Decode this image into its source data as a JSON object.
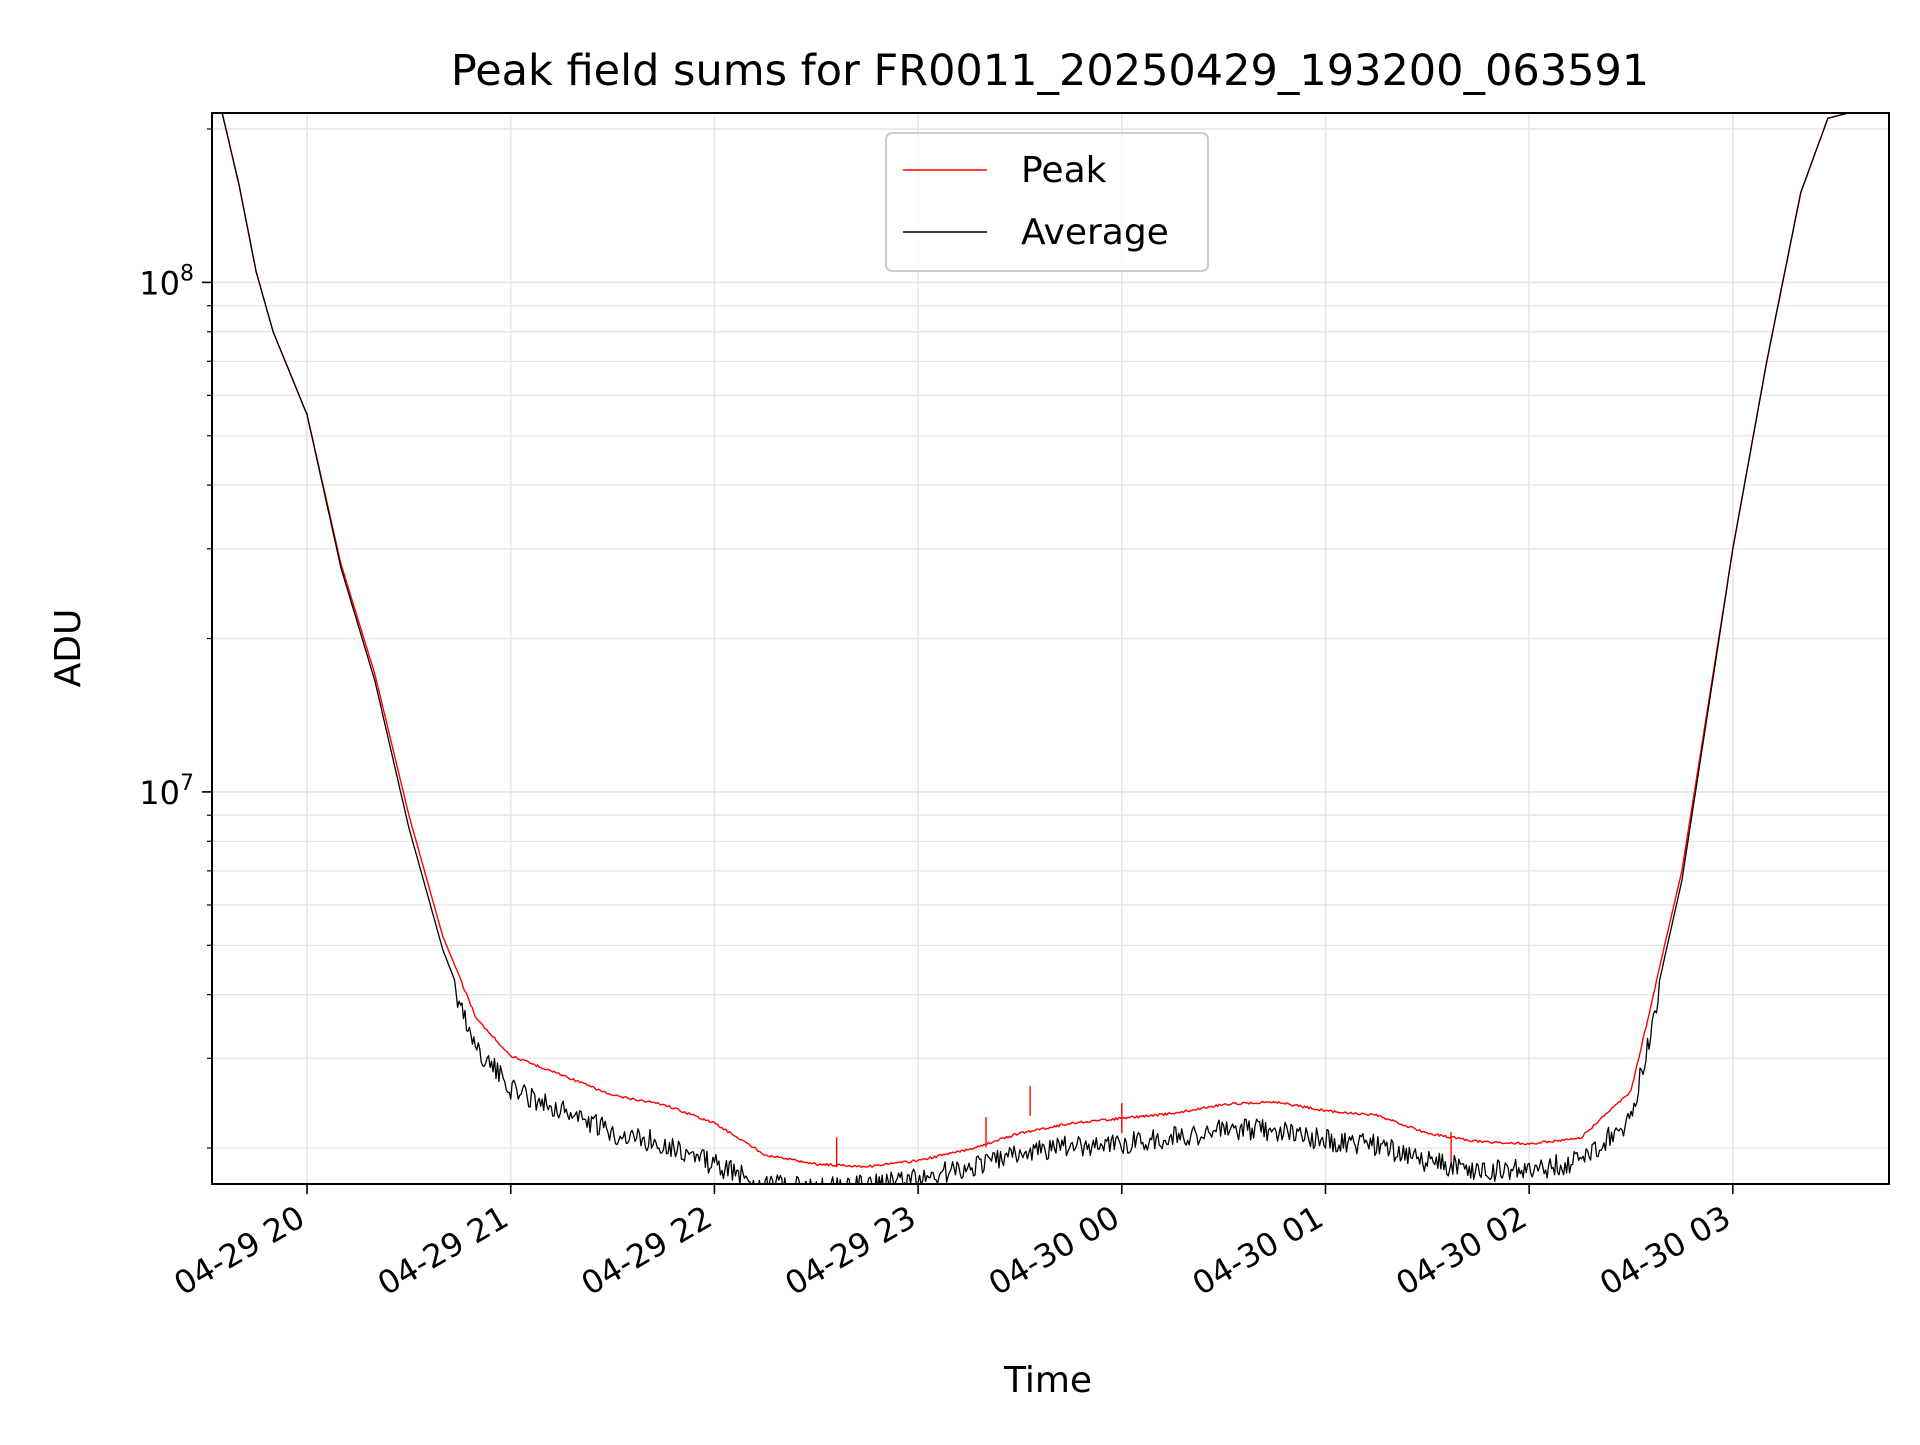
{
  "chart_data": {
    "type": "line",
    "title": "Peak field sums for FR0011_20250429_193200_063591",
    "xlabel": "Time",
    "ylabel": "ADU",
    "yscale": "log",
    "ylim": [
      1700000,
      215000000
    ],
    "xlim": [
      "2025-04-29 19:32",
      "2025-04-30 03:46"
    ],
    "grid": true,
    "legend_position": "upper center",
    "x_ticks": [
      "2025-04-29 20:00",
      "2025-04-29 21:00",
      "2025-04-29 22:00",
      "2025-04-29 23:00",
      "2025-04-30 00:00",
      "2025-04-30 01:00",
      "2025-04-30 02:00",
      "2025-04-30 03:00"
    ],
    "x_tick_labels": [
      "04-29 20",
      "04-29 21",
      "04-29 22",
      "04-29 23",
      "04-30 00",
      "04-30 01",
      "04-30 02",
      "04-30 03"
    ],
    "y_tick_labels": [
      {
        "value": 10000000,
        "base": "10",
        "exp": "7"
      },
      {
        "value": 100000000,
        "base": "10",
        "exp": "8"
      }
    ],
    "series": [
      {
        "name": "Peak",
        "color": "#ff0000",
        "spikes": [
          {
            "x": "2025-04-29 22:36",
            "y": 2100000
          },
          {
            "x": "2025-04-29 23:20",
            "y": 2300000
          },
          {
            "x": "2025-04-29 23:33",
            "y": 2650000
          },
          {
            "x": "2025-04-30 00:00",
            "y": 2450000
          },
          {
            "x": "2025-04-30 01:37",
            "y": 2150000
          }
        ],
        "points": [
          {
            "x": "2025-04-29 19:32",
            "y": 215000000
          },
          {
            "x": "2025-04-29 19:35",
            "y": 215000000
          },
          {
            "x": "2025-04-29 19:40",
            "y": 155000000
          },
          {
            "x": "2025-04-29 19:45",
            "y": 105000000
          },
          {
            "x": "2025-04-29 19:50",
            "y": 80000000
          },
          {
            "x": "2025-04-29 20:00",
            "y": 55000000
          },
          {
            "x": "2025-04-29 20:10",
            "y": 28000000
          },
          {
            "x": "2025-04-29 20:20",
            "y": 17000000
          },
          {
            "x": "2025-04-29 20:30",
            "y": 9000000
          },
          {
            "x": "2025-04-29 20:40",
            "y": 5200000
          },
          {
            "x": "2025-04-29 20:50",
            "y": 3600000
          },
          {
            "x": "2025-04-29 21:00",
            "y": 3050000
          },
          {
            "x": "2025-04-29 21:15",
            "y": 2800000
          },
          {
            "x": "2025-04-29 21:30",
            "y": 2550000
          },
          {
            "x": "2025-04-29 21:45",
            "y": 2450000
          },
          {
            "x": "2025-04-29 22:00",
            "y": 2250000
          },
          {
            "x": "2025-04-29 22:15",
            "y": 1950000
          },
          {
            "x": "2025-04-29 22:30",
            "y": 1870000
          },
          {
            "x": "2025-04-29 22:45",
            "y": 1850000
          },
          {
            "x": "2025-04-29 23:00",
            "y": 1900000
          },
          {
            "x": "2025-04-29 23:15",
            "y": 2000000
          },
          {
            "x": "2025-04-29 23:30",
            "y": 2150000
          },
          {
            "x": "2025-04-29 23:45",
            "y": 2250000
          },
          {
            "x": "2025-04-30 00:00",
            "y": 2300000
          },
          {
            "x": "2025-04-30 00:15",
            "y": 2350000
          },
          {
            "x": "2025-04-30 00:30",
            "y": 2450000
          },
          {
            "x": "2025-04-30 00:45",
            "y": 2480000
          },
          {
            "x": "2025-04-30 01:00",
            "y": 2380000
          },
          {
            "x": "2025-04-30 01:15",
            "y": 2330000
          },
          {
            "x": "2025-04-30 01:30",
            "y": 2150000
          },
          {
            "x": "2025-04-30 01:45",
            "y": 2070000
          },
          {
            "x": "2025-04-30 02:00",
            "y": 2050000
          },
          {
            "x": "2025-04-30 02:15",
            "y": 2100000
          },
          {
            "x": "2025-04-30 02:30",
            "y": 2600000
          },
          {
            "x": "2025-04-30 02:45",
            "y": 7000000
          },
          {
            "x": "2025-04-30 03:00",
            "y": 30000000
          },
          {
            "x": "2025-04-30 03:10",
            "y": 70000000
          },
          {
            "x": "2025-04-30 03:20",
            "y": 150000000
          },
          {
            "x": "2025-04-30 03:28",
            "y": 210000000
          },
          {
            "x": "2025-04-30 03:34",
            "y": 215000000
          }
        ]
      },
      {
        "name": "Average",
        "color": "#000000",
        "points": [
          {
            "x": "2025-04-29 19:32",
            "y": 215000000
          },
          {
            "x": "2025-04-29 19:35",
            "y": 215000000
          },
          {
            "x": "2025-04-29 19:40",
            "y": 155000000
          },
          {
            "x": "2025-04-29 19:45",
            "y": 105000000
          },
          {
            "x": "2025-04-29 19:50",
            "y": 80000000
          },
          {
            "x": "2025-04-29 20:00",
            "y": 55000000
          },
          {
            "x": "2025-04-29 20:10",
            "y": 27500000
          },
          {
            "x": "2025-04-29 20:20",
            "y": 16500000
          },
          {
            "x": "2025-04-29 20:30",
            "y": 8500000
          },
          {
            "x": "2025-04-29 20:40",
            "y": 4900000
          },
          {
            "x": "2025-04-29 20:50",
            "y": 3300000
          },
          {
            "x": "2025-04-29 21:00",
            "y": 2750000
          },
          {
            "x": "2025-04-29 21:15",
            "y": 2500000
          },
          {
            "x": "2025-04-29 21:30",
            "y": 2250000
          },
          {
            "x": "2025-04-29 21:45",
            "y": 2150000
          },
          {
            "x": "2025-04-29 22:00",
            "y": 1950000
          },
          {
            "x": "2025-04-29 22:15",
            "y": 1780000
          },
          {
            "x": "2025-04-29 22:30",
            "y": 1750000
          },
          {
            "x": "2025-04-29 22:45",
            "y": 1780000
          },
          {
            "x": "2025-04-29 23:00",
            "y": 1830000
          },
          {
            "x": "2025-04-29 23:15",
            "y": 1930000
          },
          {
            "x": "2025-04-29 23:30",
            "y": 2050000
          },
          {
            "x": "2025-04-29 23:45",
            "y": 2120000
          },
          {
            "x": "2025-04-30 00:00",
            "y": 2150000
          },
          {
            "x": "2025-04-30 00:15",
            "y": 2200000
          },
          {
            "x": "2025-04-30 00:30",
            "y": 2280000
          },
          {
            "x": "2025-04-30 00:45",
            "y": 2280000
          },
          {
            "x": "2025-04-30 01:00",
            "y": 2180000
          },
          {
            "x": "2025-04-30 01:15",
            "y": 2130000
          },
          {
            "x": "2025-04-30 01:30",
            "y": 1980000
          },
          {
            "x": "2025-04-30 01:45",
            "y": 1900000
          },
          {
            "x": "2025-04-30 02:00",
            "y": 1900000
          },
          {
            "x": "2025-04-30 02:15",
            "y": 1980000
          },
          {
            "x": "2025-04-30 02:30",
            "y": 2400000
          },
          {
            "x": "2025-04-30 02:45",
            "y": 6700000
          },
          {
            "x": "2025-04-30 03:00",
            "y": 30000000
          },
          {
            "x": "2025-04-30 03:10",
            "y": 70000000
          },
          {
            "x": "2025-04-30 03:20",
            "y": 150000000
          },
          {
            "x": "2025-04-30 03:28",
            "y": 210000000
          },
          {
            "x": "2025-04-30 03:34",
            "y": 215000000
          }
        ]
      }
    ]
  }
}
